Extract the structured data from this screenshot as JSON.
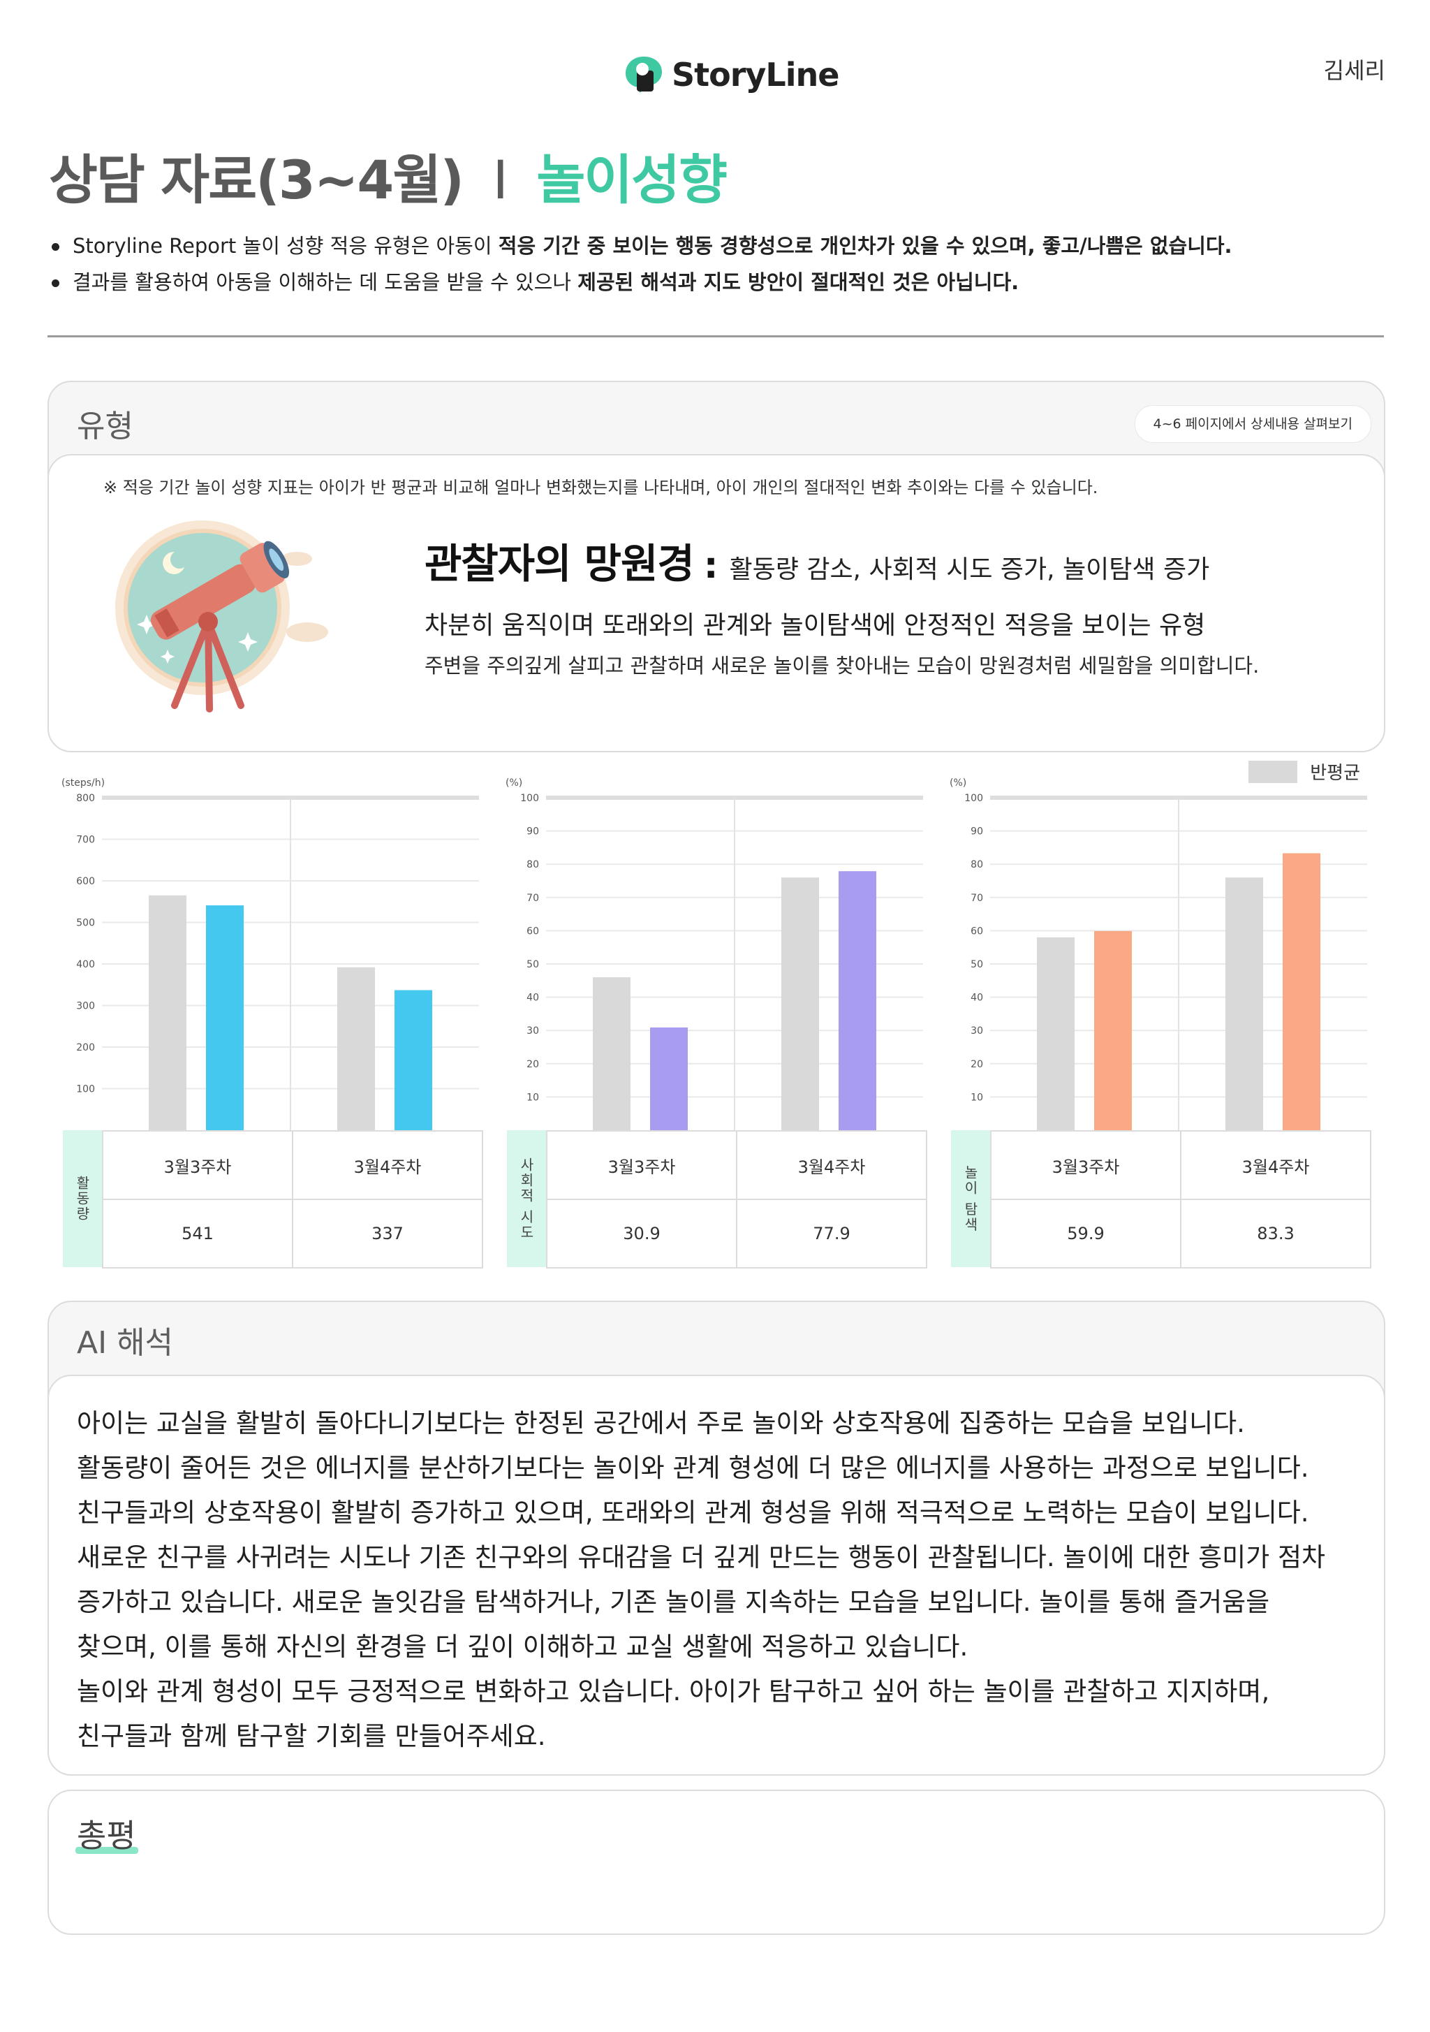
{
  "header": {
    "brand": "StoryLine",
    "user_name": "김세리",
    "brand_color": "#3ec9a2"
  },
  "page": {
    "title_main": "상담 자료(3~4월)",
    "title_sep": "I",
    "title_accent": "놀이성향",
    "notes": [
      {
        "plain": "Storyline Report 놀이 성향 적응 유형은 아동이 ",
        "bold": "적응 기간 중 보이는 행동 경향성으로 개인차가 있을 수 있으며, 좋고/나쁨은 없습니다."
      },
      {
        "plain": "결과를 활용하여 아동을 이해하는 데 도움을 받을 수 있으나 ",
        "bold": "제공된 해석과 지도 방안이 절대적인 것은 아닙니다."
      }
    ]
  },
  "type_card": {
    "title": "유형",
    "detail_link": "4~6 페이지에서 상세내용 살펴보기",
    "note": "※ 적응 기간 놀이 성향 지표는 아이가 반 평균과 비교해 얼마나 변화했는지를 나타내며, 아이 개인의 절대적인 변화 추이와는 다를 수 있습니다.",
    "type_name": "관찰자의 망원경",
    "separator": ":",
    "type_summary": "활동량 감소, 사회적 시도 증가, 놀이탐색 증가",
    "desc1": "차분히 움직이며 또래와의 관계와 놀이탐색에 안정적인 적응을 보이는 유형",
    "desc2": "주변을 주의깊게 살피고 관찰하며 새로운 놀이를 찾아내는 모습이 망원경처럼 세밀함을 의미합니다.",
    "illustration_icon": "telescope-icon"
  },
  "legend": {
    "label": "반평균",
    "color": "#d9d9d9"
  },
  "chart_data": [
    {
      "type": "bar",
      "unit": "(steps/h)",
      "row_label": "활동량",
      "categories": [
        "3월3주차",
        "3월4주차"
      ],
      "series": [
        {
          "name": "반평균",
          "values": [
            565,
            392
          ],
          "color": "#d9d9d9"
        },
        {
          "values": [
            541,
            337
          ],
          "color": "#44c8f0"
        }
      ],
      "ylim": [
        0,
        800
      ],
      "yticks": [
        100,
        200,
        300,
        400,
        500,
        600,
        700,
        800
      ],
      "table_values": [
        "541",
        "337"
      ]
    },
    {
      "type": "bar",
      "unit": "(%)",
      "row_label": "사회적 시도",
      "categories": [
        "3월3주차",
        "3월4주차"
      ],
      "series": [
        {
          "name": "반평균",
          "values": [
            46,
            76
          ],
          "color": "#d9d9d9"
        },
        {
          "values": [
            30.9,
            77.9
          ],
          "color": "#a79cf0"
        }
      ],
      "ylim": [
        0,
        100
      ],
      "yticks": [
        10,
        20,
        30,
        40,
        50,
        60,
        70,
        80,
        90,
        100
      ],
      "table_values": [
        "30.9",
        "77.9"
      ]
    },
    {
      "type": "bar",
      "unit": "(%)",
      "row_label": "놀이 탐색",
      "categories": [
        "3월3주차",
        "3월4주차"
      ],
      "series": [
        {
          "name": "반평균",
          "values": [
            58,
            76
          ],
          "color": "#d9d9d9"
        },
        {
          "values": [
            59.9,
            83.3
          ],
          "color": "#fba985"
        }
      ],
      "ylim": [
        0,
        100
      ],
      "yticks": [
        10,
        20,
        30,
        40,
        50,
        60,
        70,
        80,
        90,
        100
      ],
      "table_values": [
        "59.9",
        "83.3"
      ]
    }
  ],
  "ai_card": {
    "title": "AI 해석",
    "lines": [
      "아이는 교실을 활발히 돌아다니기보다는 한정된 공간에서 주로 놀이와 상호작용에 집중하는 모습을 보입니다.",
      "활동량이 줄어든 것은 에너지를 분산하기보다는 놀이와 관계 형성에 더 많은 에너지를 사용하는 과정으로 보입니다.",
      "친구들과의 상호작용이 활발히 증가하고 있으며, 또래와의 관계 형성을 위해 적극적으로 노력하는 모습이 보입니다.",
      "새로운 친구를 사귀려는 시도나 기존 친구와의 유대감을 더 깊게 만드는 행동이 관찰됩니다. 놀이에 대한 흥미가 점차",
      "증가하고 있습니다. 새로운 놀잇감을 탐색하거나, 기존 놀이를 지속하는 모습을 보입니다. 놀이를 통해 즐거움을",
      "찾으며, 이를 통해 자신의 환경을 더 깊이 이해하고 교실 생활에 적응하고 있습니다.",
      "놀이와 관계 형성이 모두 긍정적으로 변화하고 있습니다. 아이가 탐구하고 싶어 하는 놀이를 관찰하고 지지하며,",
      "친구들과 함께 탐구할 기회를 만들어주세요."
    ]
  },
  "summary_card": {
    "title": "총평"
  }
}
